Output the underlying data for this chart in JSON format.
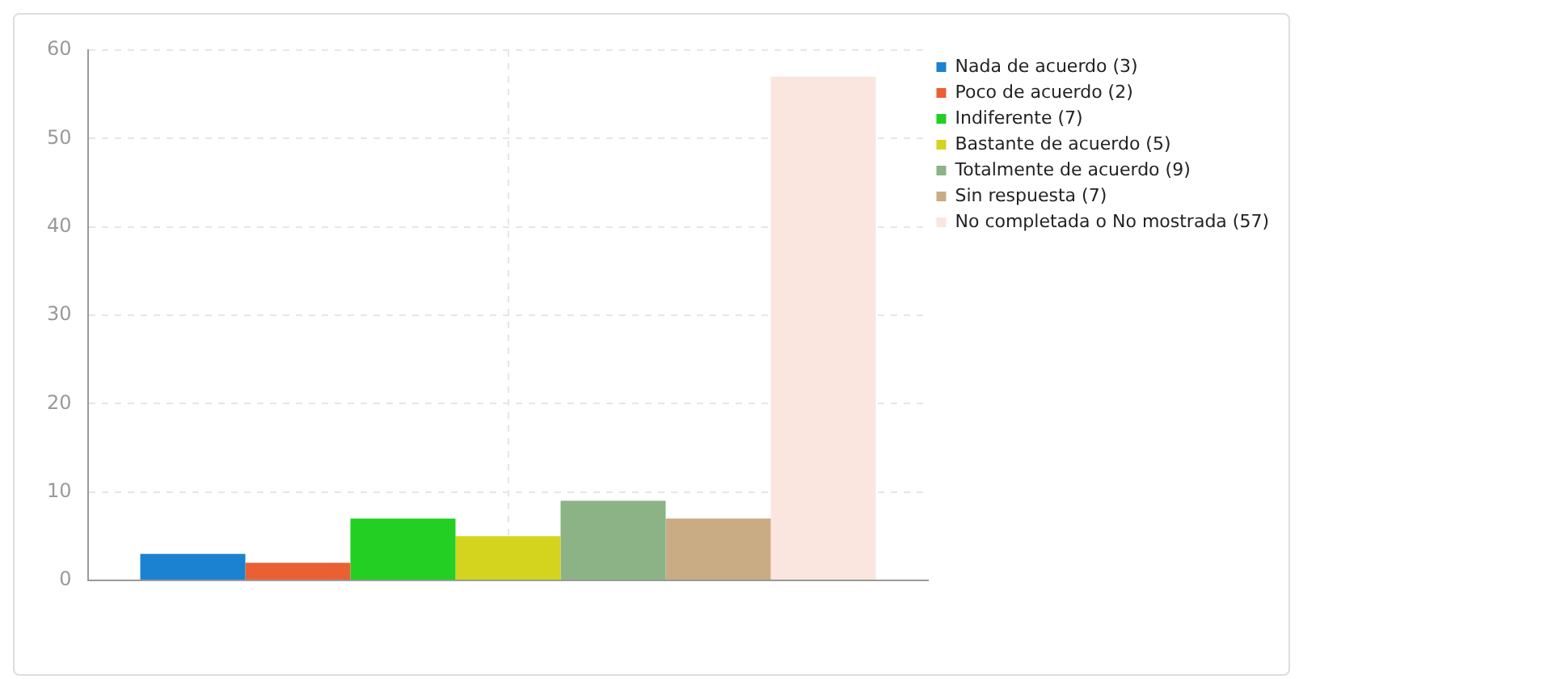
{
  "chart_data": {
    "type": "bar",
    "categories": [
      null
    ],
    "series": [
      {
        "name": "Nada de acuerdo (3)",
        "color": "#1a82d0",
        "values": [
          3
        ]
      },
      {
        "name": "Poco de acuerdo (2)",
        "color": "#ea6032",
        "values": [
          2
        ]
      },
      {
        "name": "Indiferente (7)",
        "color": "#22cf22",
        "values": [
          7
        ]
      },
      {
        "name": "Bastante de acuerdo (5)",
        "color": "#d4d41e",
        "values": [
          5
        ]
      },
      {
        "name": "Totalmente de acuerdo (9)",
        "color": "#8bb386",
        "values": [
          9
        ]
      },
      {
        "name": "Sin respuesta (7)",
        "color": "#c9ac84",
        "values": [
          7
        ]
      },
      {
        "name": "No completada o No mostrada (57)",
        "color": "#fae6de",
        "values": [
          57
        ]
      }
    ],
    "ylim": [
      0,
      60
    ],
    "yticks": [
      0,
      10,
      20,
      30,
      40,
      50,
      60
    ],
    "grid": true,
    "legend": "top right"
  }
}
